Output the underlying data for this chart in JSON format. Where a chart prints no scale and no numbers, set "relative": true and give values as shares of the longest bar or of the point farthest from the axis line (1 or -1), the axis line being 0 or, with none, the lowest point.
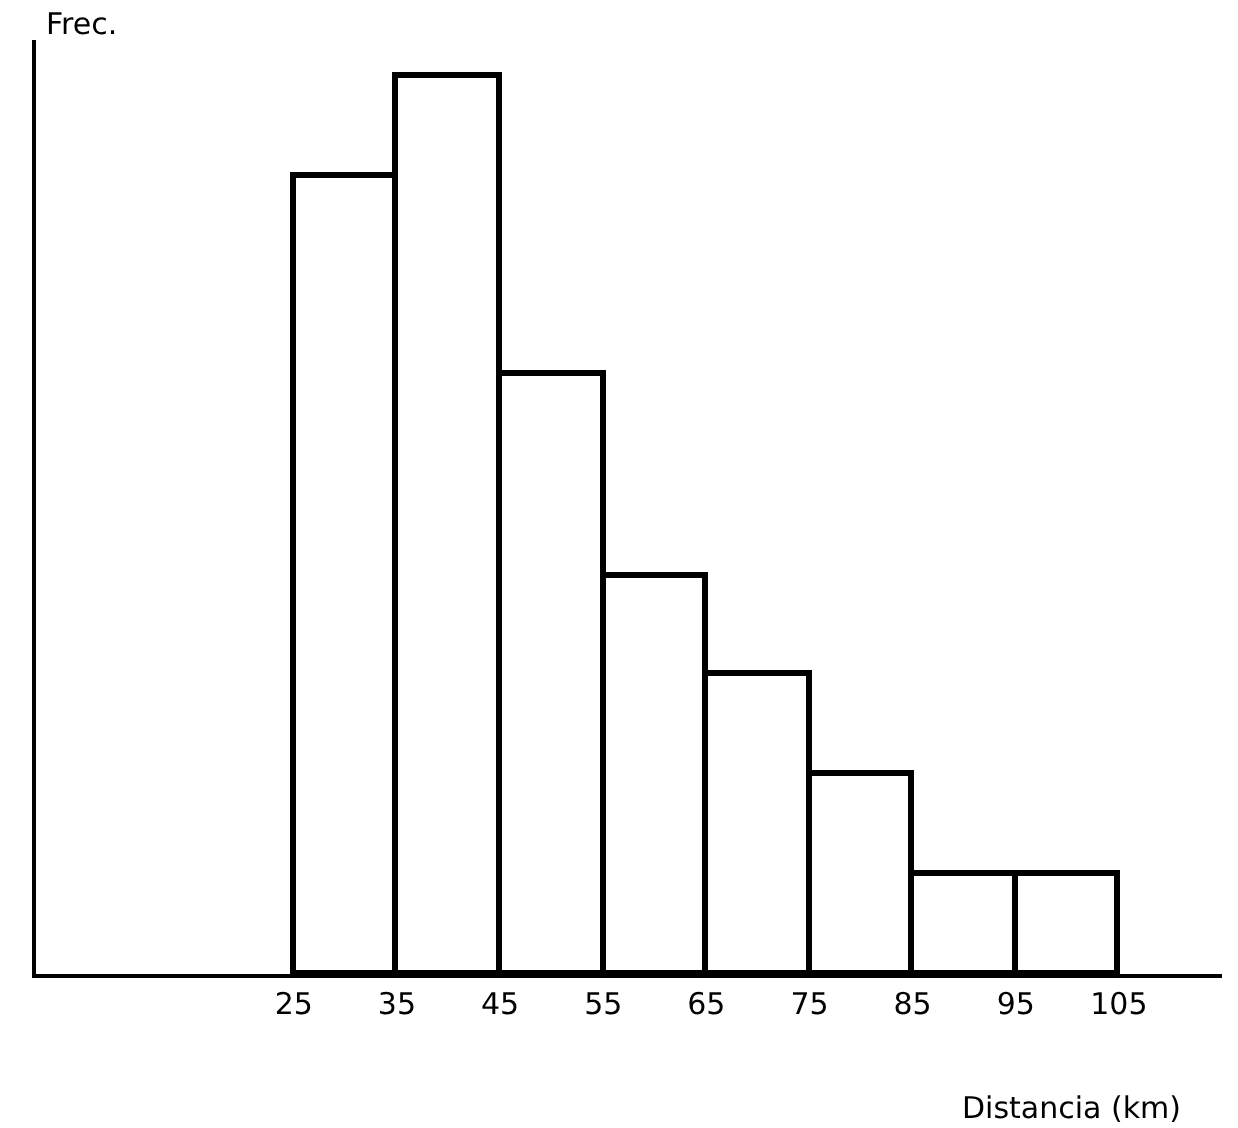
{
  "chart_data": {
    "type": "bar",
    "x": [
      30,
      40,
      50,
      60,
      70,
      80,
      90,
      100
    ],
    "values": [
      0.889,
      1,
      0.667,
      0.444,
      0.333,
      0.222,
      0.111,
      0.111
    ],
    "relative": true,
    "color": "#ffffff",
    "xlim": [
      0,
      115
    ],
    "xticks": [
      25,
      35,
      45,
      55,
      65,
      75,
      85,
      95,
      105
    ],
    "xlabel": "Distancia (km)",
    "ylabel": "Frec.",
    "tick_labels": "x"
  }
}
